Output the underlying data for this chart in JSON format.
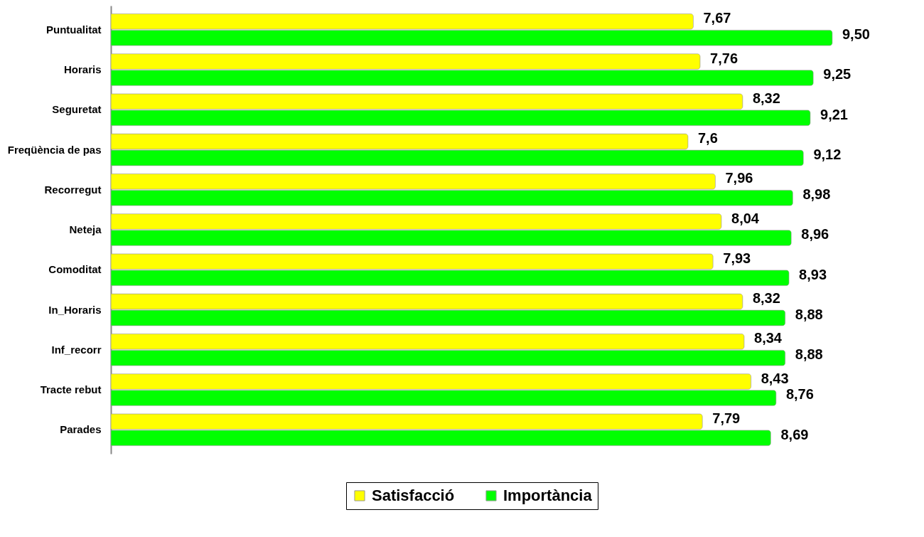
{
  "chart_data": {
    "type": "bar",
    "orientation": "horizontal",
    "categories": [
      "Puntualitat",
      "Horaris",
      "Seguretat",
      "Freqüència de pas",
      "Recorregut",
      "Neteja",
      "Comoditat",
      "In_Horaris",
      "Inf_recorr",
      "Tracte rebut",
      "Parades"
    ],
    "series": [
      {
        "name": "Satisfacció",
        "color": "#ffff00",
        "values": [
          7.67,
          7.76,
          8.32,
          7.6,
          7.96,
          8.04,
          7.93,
          8.32,
          8.34,
          8.43,
          7.79
        ],
        "value_labels": [
          "7,67",
          "7,76",
          "8,32",
          "7,6",
          "7,96",
          "8,04",
          "7,93",
          "8,32",
          "8,34",
          "8,43",
          "7,79"
        ]
      },
      {
        "name": "Importància",
        "color": "#00ff00",
        "values": [
          9.5,
          9.25,
          9.21,
          9.12,
          8.98,
          8.96,
          8.93,
          8.88,
          8.88,
          8.76,
          8.69
        ],
        "value_labels": [
          "9,50",
          "9,25",
          "9,21",
          "9,12",
          "8,98",
          "8,96",
          "8,93",
          "8,88",
          "8,88",
          "8,76",
          "8,69"
        ]
      }
    ],
    "legend": "bottom"
  }
}
